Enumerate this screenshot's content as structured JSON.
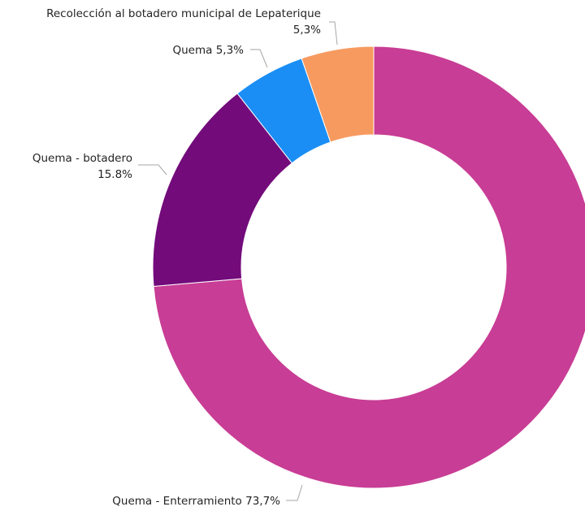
{
  "chart_data": {
    "type": "pie",
    "variant": "donut",
    "title": "",
    "slices": [
      {
        "label": "Quema - Enterramiento",
        "percent_text": "73,7%",
        "value": 73.7,
        "color": "#c83d95"
      },
      {
        "label": "Quema - botadero",
        "percent_text": "15.8%",
        "value": 15.8,
        "color": "#730b7b"
      },
      {
        "label": "Quema",
        "percent_text": "5,3%",
        "value": 5.3,
        "color": "#1a8ef5"
      },
      {
        "label": "Recolección al botadero municipal de Lepaterique",
        "percent_text": "5,3%",
        "value": 5.3,
        "color": "#f79a5f"
      }
    ],
    "legend": "none"
  }
}
